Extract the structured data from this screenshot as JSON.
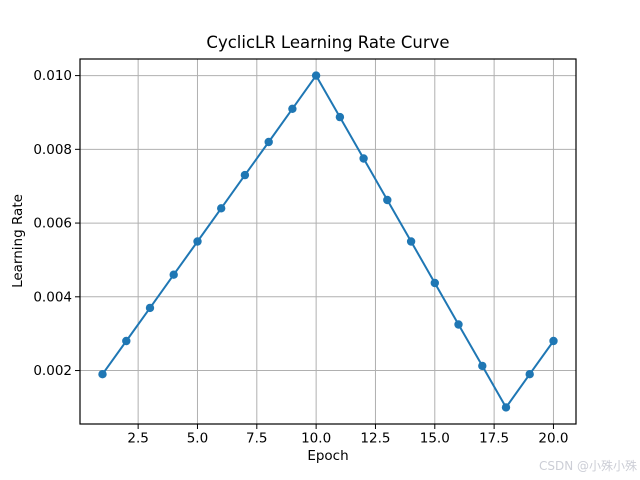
{
  "figure": {
    "background": "#ffffff"
  },
  "watermark": {
    "text": "CSDN @小殊小殊",
    "color": "#ccced6"
  },
  "chart_data": {
    "type": "line",
    "title": "CyclicLR Learning Rate Curve",
    "xlabel": "Epoch",
    "ylabel": "Learning Rate",
    "x": [
      1,
      2,
      3,
      4,
      5,
      6,
      7,
      8,
      9,
      10,
      11,
      12,
      13,
      14,
      15,
      16,
      17,
      18,
      19,
      20
    ],
    "y": [
      0.0019,
      0.0028,
      0.0037,
      0.0046,
      0.0055,
      0.0064,
      0.0073,
      0.0082,
      0.0091,
      0.01,
      0.008875,
      0.00775,
      0.006625,
      0.0055,
      0.004375,
      0.00325,
      0.002125,
      0.001,
      0.0019,
      0.0028
    ],
    "series": [
      {
        "name": "learning-rate",
        "color": "#1f77b4",
        "marker": "circle"
      }
    ],
    "xlim": [
      0.05,
      20.95
    ],
    "ylim": [
      0.00055,
      0.01045
    ],
    "xticks": [
      2.5,
      5.0,
      7.5,
      10.0,
      12.5,
      15.0,
      17.5,
      20.0
    ],
    "xtick_labels": [
      "2.5",
      "5.0",
      "7.5",
      "10.0",
      "12.5",
      "15.0",
      "17.5",
      "20.0"
    ],
    "yticks": [
      0.002,
      0.004,
      0.006,
      0.008,
      0.01
    ],
    "ytick_labels": [
      "0.002",
      "0.004",
      "0.006",
      "0.008",
      "0.010"
    ],
    "grid": true,
    "grid_color": "#b0b0b0",
    "spine_color": "#000000",
    "tick_color": "#000000",
    "legend": "none"
  }
}
